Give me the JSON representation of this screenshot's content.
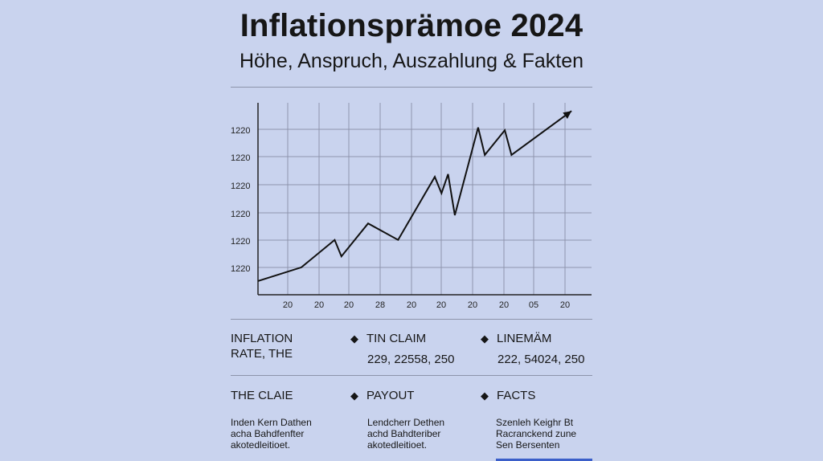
{
  "header": {
    "title": "Inflationsprämoe 2024",
    "subtitle": "Höhe, Anspruch, Auszahlung & Fakten"
  },
  "chart_data": {
    "type": "line",
    "yticks": [
      "1220",
      "1220",
      "1220",
      "1220",
      "1220",
      "1220"
    ],
    "xticks": [
      "20",
      "20",
      "20",
      "28",
      "20",
      "20",
      "20",
      "20",
      "05",
      "20"
    ],
    "series": [
      {
        "values": [
          [
            0.0,
            0.5
          ],
          [
            0.13,
            1.0
          ],
          [
            0.23,
            2.0
          ],
          [
            0.25,
            1.4
          ],
          [
            0.33,
            2.6
          ],
          [
            0.42,
            2.0
          ],
          [
            0.53,
            4.3
          ],
          [
            0.55,
            3.7
          ],
          [
            0.57,
            4.4
          ],
          [
            0.59,
            2.9
          ],
          [
            0.66,
            6.1
          ],
          [
            0.68,
            5.1
          ],
          [
            0.74,
            6.0
          ],
          [
            0.76,
            5.1
          ],
          [
            0.94,
            6.7
          ]
        ]
      }
    ],
    "arrow_end": true,
    "grid": true
  },
  "info": {
    "row1": {
      "col1": "INFLATION RATE, THE",
      "col2": {
        "label": "TIN CLAIM",
        "values": "229, 22558, 250"
      },
      "col3": {
        "label": "LINEMÄM",
        "values": "222, 54024, 250"
      }
    },
    "row2": {
      "col1": {
        "label": "THE CLAIE",
        "text": "Inden Kern Dathen acha Bahdfenfter akotedleitioet."
      },
      "col2": {
        "label": "PAYOUT",
        "text": "Lendcherr Dethen achd Bahdteriber akotedleitioet."
      },
      "col3": {
        "label": "FACTS",
        "text": "Szenleh Keighr Bt Racranckend zune Sen Bersenten"
      }
    },
    "bullet_glyph": "◆"
  }
}
